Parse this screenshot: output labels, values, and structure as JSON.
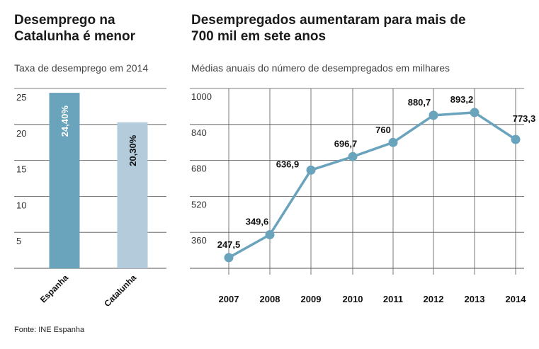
{
  "source": "Fonte: INE Espanha",
  "chart_data": [
    {
      "type": "bar",
      "title": "Desemprego na Catalunha é menor",
      "subtitle": "Taxa de desemprego em 2014",
      "categories": [
        "Espanha",
        "Catalunha"
      ],
      "values": [
        24.4,
        20.3
      ],
      "value_labels": [
        "24,40%",
        "20,30%"
      ],
      "colors": [
        "#6aa3bc",
        "#b3cbdb"
      ],
      "yticks": [
        5,
        10,
        15,
        20,
        25
      ],
      "ylim": [
        0,
        25
      ],
      "grid": true
    },
    {
      "type": "line",
      "title": "Desempregados aumentaram para mais de 700 mil em sete anos",
      "subtitle": "Médias anuais do número de desempregados em milhares",
      "x": [
        "2007",
        "2008",
        "2009",
        "2010",
        "2011",
        "2012",
        "2013",
        "2014"
      ],
      "values": [
        247.5,
        349.6,
        636.9,
        696.7,
        760,
        880.7,
        893.2,
        773.3
      ],
      "value_labels": [
        "247,5",
        "349,6",
        "636,9",
        "696,7",
        "760",
        "880,7",
        "893,2",
        "773,3"
      ],
      "yticks": [
        360,
        520,
        680,
        840,
        1000
      ],
      "ylim": [
        200,
        1000
      ],
      "color": "#6aa3bc",
      "grid": true
    }
  ]
}
